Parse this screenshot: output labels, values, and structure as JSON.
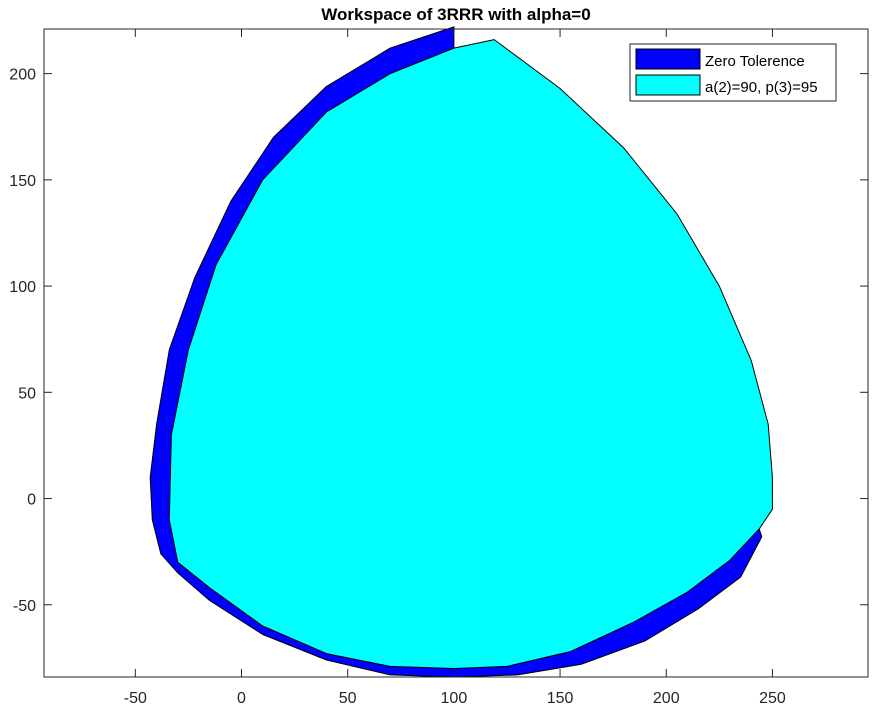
{
  "chart_data": {
    "type": "area",
    "title": "Workspace of 3RRR with alpha=0",
    "xlabel": "",
    "ylabel": "",
    "xlim": [
      -93,
      295
    ],
    "ylim": [
      -84,
      221
    ],
    "xticks": [
      -50,
      0,
      50,
      100,
      150,
      200,
      250
    ],
    "yticks": [
      -50,
      0,
      50,
      100,
      150,
      200
    ],
    "grid": false,
    "legend_position": "top-right",
    "series": [
      {
        "name": "Zero Tolerence",
        "color": "#0000ff",
        "x": [
          100,
          70,
          40,
          15,
          -5,
          -22,
          -34,
          -40,
          -43,
          -42,
          -38,
          -30,
          -15,
          10,
          40,
          70,
          100,
          130,
          160,
          190,
          215,
          235,
          245,
          242,
          225,
          195,
          160,
          130,
          100
        ],
        "y": [
          222,
          212,
          194,
          170,
          140,
          104,
          70,
          35,
          10,
          -10,
          -26,
          -35,
          -48,
          -64,
          -76,
          -83,
          -84,
          -83,
          -78,
          -67,
          -52,
          -37,
          -18,
          -9,
          -9,
          -8,
          -7,
          -6,
          -5
        ]
      },
      {
        "name": "a(2)=90, p(3)=95",
        "color": "#00ffff",
        "x": [
          119,
          150,
          180,
          205,
          225,
          240,
          248,
          250,
          250,
          244,
          230,
          210,
          185,
          155,
          125,
          100,
          70,
          40,
          10,
          -15,
          -30,
          -34,
          -33,
          -25,
          -12,
          10,
          40,
          70,
          100
        ],
        "y": [
          216,
          193,
          165,
          134,
          100,
          65,
          35,
          10,
          -5,
          -14,
          -29,
          -44,
          -58,
          -72,
          -79,
          -80,
          -79,
          -73,
          -60,
          -42,
          -30,
          -10,
          30,
          70,
          110,
          150,
          182,
          200,
          212
        ]
      }
    ]
  }
}
